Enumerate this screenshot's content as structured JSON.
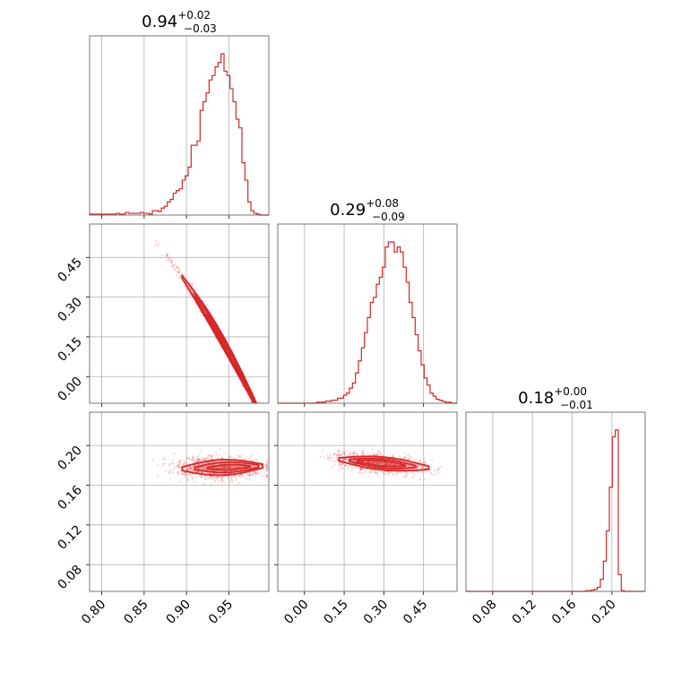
{
  "chart_data": {
    "type": "corner",
    "color": "#d62728",
    "parameters": [
      {
        "key": "p0",
        "median": "0.94",
        "err_plus": "+0.02",
        "err_minus": "−0.03",
        "range": [
          0.7856,
          0.9972
        ],
        "ticks": [
          0.8,
          0.85,
          0.9,
          0.95
        ],
        "tick_labels": [
          "0.80",
          "0.85",
          "0.90",
          "0.95"
        ]
      },
      {
        "key": "p1",
        "median": "0.29",
        "err_plus": "+0.08",
        "err_minus": "−0.09",
        "range": [
          -0.1008,
          0.5763
        ],
        "ticks": [
          0.0,
          0.15,
          0.3,
          0.45
        ],
        "tick_labels": [
          "0.00",
          "0.15",
          "0.30",
          "0.45"
        ]
      },
      {
        "key": "p2",
        "median": "0.18",
        "err_plus": "+0.00",
        "err_minus": "−0.01",
        "range": [
          0.0531,
          0.2335
        ],
        "ticks": [
          0.08,
          0.12,
          0.16,
          0.2
        ],
        "tick_labels": [
          "0.08",
          "0.12",
          "0.16",
          "0.20"
        ]
      }
    ],
    "histograms": [
      {
        "param": 0,
        "edges": [
          0.7856,
          0.9972
        ],
        "counts": [
          1,
          1,
          1,
          1,
          1,
          1,
          1,
          1,
          1,
          2,
          1,
          1,
          3,
          2,
          2,
          2,
          2,
          3,
          2,
          2,
          1,
          5,
          5,
          4,
          8,
          10,
          15,
          18,
          25,
          28,
          30,
          40,
          45,
          55,
          80,
          80,
          85,
          120,
          130,
          140,
          155,
          160,
          170,
          175,
          185,
          165,
          160,
          145,
          130,
          110,
          100,
          60,
          40,
          15,
          5,
          2,
          1,
          0,
          0,
          0
        ]
      },
      {
        "param": 1,
        "edges": [
          -0.1008,
          0.5763
        ],
        "counts": [
          0,
          0,
          0,
          0,
          0,
          0,
          0,
          0,
          0,
          0,
          0,
          0,
          0,
          1,
          1,
          1,
          2,
          2,
          3,
          3,
          5,
          5,
          8,
          10,
          15,
          20,
          30,
          42,
          55,
          70,
          85,
          100,
          105,
          118,
          125,
          135,
          155,
          160,
          160,
          150,
          155,
          150,
          135,
          120,
          100,
          85,
          68,
          52,
          38,
          25,
          18,
          10,
          7,
          4,
          3,
          2,
          1,
          1,
          0,
          0
        ]
      },
      {
        "param": 2,
        "edges": [
          0.0531,
          0.2335
        ],
        "counts": [
          0,
          0,
          0,
          0,
          0,
          0,
          0,
          0,
          0,
          0,
          0,
          0,
          0,
          0,
          0,
          0,
          0,
          0,
          0,
          0,
          0,
          0,
          0,
          0,
          0,
          0,
          0,
          0,
          0,
          0,
          0,
          0,
          0,
          0,
          0,
          0,
          0,
          0,
          0,
          0,
          1,
          1,
          2,
          3,
          6,
          18,
          45,
          90,
          155,
          230,
          240,
          25,
          1,
          0,
          0,
          0,
          0,
          0,
          0,
          0
        ]
      }
    ],
    "pairs": [
      {
        "x": 0,
        "y": 1,
        "relation": "y = 0.48 - 3.9*(x - 0.87) - 12*(x - 0.87)^2",
        "x_extent": [
          0.86,
          0.995
        ]
      },
      {
        "x": 0,
        "y": 2,
        "relation": "y ~ 0.178",
        "x_extent": [
          0.86,
          0.995
        ]
      },
      {
        "x": 1,
        "y": 2,
        "relation": "y ~ 0.180 - 0.02*(x - 0.29)",
        "x_extent": [
          0.1,
          0.52
        ]
      }
    ],
    "grid": true
  }
}
